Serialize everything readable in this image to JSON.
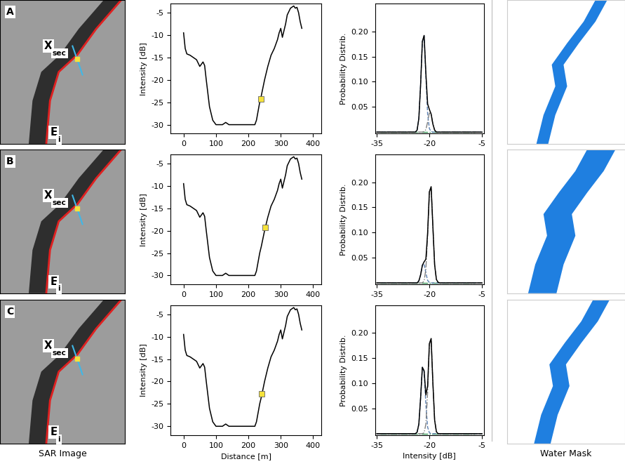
{
  "panels": [
    "A",
    "B",
    "C"
  ],
  "images": {
    "sar": {
      "title": "SAR Image",
      "point_label": {
        "main": "X",
        "sub": "sec"
      },
      "edge_label": {
        "main": "E",
        "sub": "i"
      }
    },
    "mask": {
      "title": "Water Mask"
    }
  },
  "chart_data": [
    {
      "type": "line",
      "y_label": "Intensity [dB]",
      "xlim": [
        -40,
        425
      ],
      "ylim": [
        -32,
        -3
      ],
      "xticks": [
        0,
        100,
        200,
        300,
        400
      ],
      "yticks": [
        -30,
        -25,
        -20,
        -15,
        -10,
        -5
      ],
      "series": [
        {
          "type": "line",
          "color": "#000000",
          "line_style": "solid",
          "x": [
            0,
            5,
            10,
            20,
            30,
            40,
            50,
            55,
            60,
            65,
            70,
            80,
            90,
            100,
            110,
            120,
            130,
            140,
            150,
            160,
            180,
            200,
            220,
            225,
            230,
            235,
            240,
            250,
            260,
            270,
            280,
            290,
            295,
            300,
            305,
            310,
            315,
            320,
            330,
            340,
            345,
            350,
            355,
            360,
            365
          ],
          "values": [
            -9.5,
            -13,
            -14.2,
            -14.5,
            -15,
            -15.5,
            -17,
            -16.5,
            -16,
            -16.8,
            -20,
            -26,
            -29,
            -30,
            -30,
            -30,
            -29.5,
            -30,
            -30,
            -30,
            -30,
            -30,
            -30,
            -29,
            -27,
            -25,
            -23.5,
            -20,
            -17,
            -14.5,
            -13,
            -11,
            -9.5,
            -8.5,
            -10.5,
            -9,
            -7.5,
            -5.5,
            -4,
            -3.5,
            -4,
            -3.8,
            -5,
            -7,
            -8.5
          ]
        },
        {
          "type": "scatter",
          "color": "#f5e23c",
          "marker": "square",
          "x": [
            239
          ],
          "values": [
            -24.2
          ]
        }
      ]
    },
    {
      "type": "line",
      "y_label": "Probability Distrib.",
      "xlim": [
        -35.5,
        -4.5
      ],
      "ylim": [
        -0.003,
        0.255
      ],
      "xticks": [
        -35,
        -20,
        -5
      ],
      "yticks": [
        {
          "value": 0.05,
          "label": "0.05"
        },
        {
          "value": 0.1,
          "label": "0.10"
        },
        {
          "value": 0.15,
          "label": "0.15"
        },
        {
          "value": 0.2,
          "label": "0.20"
        }
      ],
      "series": [
        {
          "type": "line",
          "color": "#3a9a5a",
          "line_style": "dashdot",
          "x": [
            -34,
            -7
          ],
          "values": [
            0,
            0
          ]
        },
        {
          "type": "line",
          "color": "#5b7fb0",
          "line_style": "dashed",
          "x": [
            -35,
            -25,
            -24,
            -23.5,
            -23,
            -22.5,
            -22,
            -21.5,
            -21,
            -20.5,
            -20,
            -19.5,
            -19,
            -18.5,
            -18,
            -17.5,
            -17,
            -5
          ],
          "values": [
            0,
            0,
            0,
            0.004,
            0.027,
            0.094,
            0.18,
            0.191,
            0.112,
            0.036,
            0.007,
            0.001,
            0,
            0,
            0,
            0,
            0,
            0
          ]
        },
        {
          "type": "line",
          "color": "#808080",
          "line_style": "dashdot",
          "x": [
            -35,
            -25,
            -24,
            -23.5,
            -23,
            -22.5,
            -22,
            -21.5,
            -21,
            -20.5,
            -20,
            -19.5,
            -19,
            -18.5,
            -18,
            -17.5,
            -17,
            -5
          ],
          "values": [
            0,
            0,
            0,
            0,
            0,
            0,
            0,
            0.001,
            0.005,
            0.02,
            0.038,
            0.035,
            0.016,
            0.004,
            0,
            0,
            0,
            0
          ]
        },
        {
          "type": "line",
          "color": "#000000",
          "line_style": "solid",
          "x": [
            -35,
            -25,
            -24,
            -23.5,
            -23,
            -22.5,
            -22,
            -21.5,
            -21,
            -20.5,
            -20,
            -19.5,
            -19,
            -18.5,
            -18,
            -17.5,
            -17,
            -5
          ],
          "values": [
            0,
            0,
            0,
            0.004,
            0.027,
            0.094,
            0.18,
            0.192,
            0.117,
            0.056,
            0.045,
            0.036,
            0.016,
            0.004,
            0,
            0,
            0,
            0
          ]
        }
      ]
    },
    {
      "type": "line",
      "y_label": "Intensity [dB]",
      "xlim": [
        -40,
        425
      ],
      "ylim": [
        -32,
        -3
      ],
      "xticks": [
        0,
        100,
        200,
        300,
        400
      ],
      "yticks": [
        -30,
        -25,
        -20,
        -15,
        -10,
        -5
      ],
      "series": [
        {
          "type": "line",
          "color": "#000000",
          "line_style": "solid",
          "x": [
            0,
            5,
            10,
            20,
            30,
            40,
            50,
            55,
            60,
            65,
            70,
            80,
            90,
            100,
            110,
            120,
            130,
            140,
            150,
            160,
            180,
            200,
            220,
            225,
            230,
            235,
            240,
            250,
            260,
            270,
            280,
            290,
            295,
            300,
            305,
            310,
            315,
            320,
            330,
            340,
            345,
            350,
            355,
            360,
            365
          ],
          "values": [
            -9.5,
            -13,
            -14.2,
            -14.5,
            -15,
            -15.5,
            -17,
            -16.5,
            -16,
            -16.8,
            -20,
            -26,
            -29,
            -30,
            -30,
            -30,
            -29.5,
            -30,
            -30,
            -30,
            -30,
            -30,
            -30,
            -29,
            -27,
            -25,
            -23.5,
            -20,
            -17,
            -14.5,
            -13,
            -11,
            -9.5,
            -8.5,
            -10.5,
            -9,
            -7.5,
            -5.5,
            -4,
            -3.5,
            -4,
            -3.8,
            -5,
            -7,
            -8.5
          ]
        },
        {
          "type": "scatter",
          "color": "#f5e23c",
          "marker": "square",
          "x": [
            252
          ],
          "values": [
            -19.2
          ]
        }
      ]
    },
    {
      "type": "line",
      "y_label": "Probability Distrib.",
      "xlim": [
        -35.5,
        -4.5
      ],
      "ylim": [
        -0.003,
        0.255
      ],
      "xticks": [
        -35,
        -20,
        -5
      ],
      "yticks": [
        {
          "value": 0.05,
          "label": "0.05"
        },
        {
          "value": 0.1,
          "label": "0.10"
        },
        {
          "value": 0.15,
          "label": "0.15"
        },
        {
          "value": 0.2,
          "label": "0.20"
        }
      ],
      "series": [
        {
          "type": "line",
          "color": "#3a9a5a",
          "line_style": "dashdot",
          "x": [
            -34,
            -7
          ],
          "values": [
            0,
            0
          ]
        },
        {
          "type": "line",
          "color": "#5b7fb0",
          "line_style": "dashed",
          "x": [
            -35,
            -25,
            -24,
            -23.5,
            -23,
            -22.5,
            -22,
            -21.5,
            -21,
            -20.5,
            -20,
            -19.5,
            -19,
            -18.5,
            -18,
            -17.5,
            -17,
            -5
          ],
          "values": [
            0,
            0,
            0,
            0,
            0.004,
            0.016,
            0.035,
            0.038,
            0.02,
            0.005,
            0.001,
            0,
            0,
            0,
            0,
            0,
            0,
            0
          ]
        },
        {
          "type": "line",
          "color": "#808080",
          "line_style": "dashdot",
          "x": [
            -35,
            -25,
            -24,
            -23.5,
            -23,
            -22.5,
            -22,
            -21.5,
            -21,
            -20.5,
            -20,
            -19.5,
            -19,
            -18.5,
            -18,
            -17.5,
            -17,
            -5
          ],
          "values": [
            0,
            0,
            0,
            0,
            0,
            0,
            0,
            0.004,
            0.027,
            0.094,
            0.18,
            0.191,
            0.112,
            0.036,
            0.007,
            0.001,
            0,
            0
          ]
        },
        {
          "type": "line",
          "color": "#000000",
          "line_style": "solid",
          "x": [
            -35,
            -25,
            -24,
            -23.5,
            -23,
            -22.5,
            -22,
            -21.5,
            -21,
            -20.5,
            -20,
            -19.5,
            -19,
            -18.5,
            -18,
            -17.5,
            -17,
            -5
          ],
          "values": [
            0,
            0,
            0,
            0,
            0.004,
            0.016,
            0.035,
            0.042,
            0.047,
            0.099,
            0.181,
            0.191,
            0.112,
            0.036,
            0.007,
            0.001,
            0,
            0
          ]
        }
      ]
    },
    {
      "type": "line",
      "y_label": "Intensity [dB]",
      "x_label": "Distance [m]",
      "xlim": [
        -40,
        425
      ],
      "ylim": [
        -32,
        -3
      ],
      "xticks": [
        0,
        100,
        200,
        300,
        400
      ],
      "yticks": [
        -30,
        -25,
        -20,
        -15,
        -10,
        -5
      ],
      "series": [
        {
          "type": "line",
          "color": "#000000",
          "line_style": "solid",
          "x": [
            0,
            5,
            10,
            20,
            30,
            40,
            50,
            55,
            60,
            65,
            70,
            80,
            90,
            100,
            110,
            120,
            130,
            140,
            150,
            160,
            180,
            200,
            220,
            225,
            230,
            235,
            240,
            250,
            260,
            270,
            280,
            290,
            295,
            300,
            305,
            310,
            315,
            320,
            330,
            340,
            345,
            350,
            355,
            360,
            365
          ],
          "values": [
            -9.5,
            -13,
            -14.2,
            -14.5,
            -15,
            -15.5,
            -17,
            -16.5,
            -16,
            -16.8,
            -20,
            -26,
            -29,
            -30,
            -30,
            -30,
            -29.5,
            -30,
            -30,
            -30,
            -30,
            -30,
            -30,
            -29,
            -27,
            -25,
            -23.5,
            -20,
            -17,
            -14.5,
            -13,
            -11,
            -9.5,
            -8.5,
            -10.5,
            -9,
            -7.5,
            -5.5,
            -4,
            -3.5,
            -4,
            -3.8,
            -5,
            -7,
            -8.5
          ]
        },
        {
          "type": "scatter",
          "color": "#f5e23c",
          "marker": "square",
          "x": [
            242
          ],
          "values": [
            -22.8
          ]
        }
      ]
    },
    {
      "type": "line",
      "y_label": "Probability Distrib.",
      "x_label": "Intensity [dB]",
      "xlim": [
        -35.5,
        -4.5
      ],
      "ylim": [
        -0.003,
        0.255
      ],
      "xticks": [
        -35,
        -20,
        -5
      ],
      "yticks": [
        {
          "value": 0.05,
          "label": "0.05"
        },
        {
          "value": 0.1,
          "label": "0.10"
        },
        {
          "value": 0.15,
          "label": "0.15"
        },
        {
          "value": 0.2,
          "label": "0.20"
        }
      ],
      "series": [
        {
          "type": "line",
          "color": "#3a9a5a",
          "line_style": "dashdot",
          "x": [
            -34,
            -7
          ],
          "values": [
            0,
            0
          ]
        },
        {
          "type": "line",
          "color": "#5b7fb0",
          "line_style": "dashed",
          "x": [
            -35,
            -25,
            -24,
            -23.5,
            -23,
            -22.5,
            -22,
            -21.5,
            -21,
            -20.5,
            -20,
            -19.5,
            -19,
            -18.5,
            -18,
            -17.5,
            -17,
            -5
          ],
          "values": [
            0,
            0,
            0,
            0.003,
            0.019,
            0.071,
            0.132,
            0.123,
            0.058,
            0.013,
            0.002,
            0,
            0,
            0,
            0,
            0,
            0,
            0
          ]
        },
        {
          "type": "line",
          "color": "#808080",
          "line_style": "dashdot",
          "x": [
            -35,
            -25,
            -24,
            -23.5,
            -23,
            -22.5,
            -22,
            -21.5,
            -21,
            -20.5,
            -20,
            -19.5,
            -19,
            -18.5,
            -18,
            -17.5,
            -17,
            -5
          ],
          "values": [
            0,
            0,
            0,
            0,
            0,
            0,
            0,
            0.002,
            0.019,
            0.082,
            0.177,
            0.189,
            0.101,
            0.027,
            0.004,
            0,
            0,
            0
          ]
        },
        {
          "type": "line",
          "color": "#000000",
          "line_style": "solid",
          "x": [
            -35,
            -25,
            -24,
            -23.5,
            -23,
            -22.5,
            -22,
            -21.5,
            -21,
            -20.5,
            -20,
            -19.5,
            -19,
            -18.5,
            -18,
            -17.5,
            -17,
            -5
          ],
          "values": [
            0,
            0,
            0,
            0.003,
            0.019,
            0.071,
            0.132,
            0.125,
            0.077,
            0.095,
            0.179,
            0.189,
            0.101,
            0.027,
            0.004,
            0,
            0,
            0
          ]
        }
      ]
    }
  ]
}
